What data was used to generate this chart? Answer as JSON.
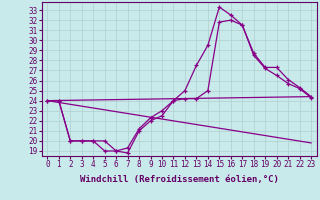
{
  "xlabel": "Windchill (Refroidissement éolien,°C)",
  "background_color": "#c8eaea",
  "line_color": "#880088",
  "xlim": [
    -0.5,
    23.5
  ],
  "ylim": [
    18.5,
    33.8
  ],
  "yticks": [
    19,
    20,
    21,
    22,
    23,
    24,
    25,
    26,
    27,
    28,
    29,
    30,
    31,
    32,
    33
  ],
  "xticks": [
    0,
    1,
    2,
    3,
    4,
    5,
    6,
    7,
    8,
    9,
    10,
    11,
    12,
    13,
    14,
    15,
    16,
    17,
    18,
    19,
    20,
    21,
    22,
    23
  ],
  "line1_x": [
    0,
    1,
    2,
    3,
    4,
    5,
    6,
    7,
    8,
    9,
    10,
    11,
    12,
    13,
    14,
    15,
    16,
    17,
    18,
    19,
    20,
    21,
    22,
    23
  ],
  "line1_y": [
    24,
    24,
    20,
    20,
    20,
    19,
    19,
    18.8,
    21,
    22,
    22.5,
    24,
    25,
    27.5,
    29.5,
    33.3,
    32.5,
    31.5,
    28.5,
    27.2,
    26.5,
    25.7,
    25.2,
    24.3
  ],
  "line2_x": [
    0,
    1,
    2,
    3,
    4,
    5,
    6,
    7,
    8,
    9,
    10,
    11,
    12,
    13,
    14,
    15,
    16,
    17,
    18,
    19,
    20,
    21,
    22,
    23
  ],
  "line2_y": [
    24,
    24,
    20,
    20,
    20,
    20,
    19,
    19.3,
    21.2,
    22.3,
    23,
    24,
    24.2,
    24.2,
    25,
    31.8,
    32.0,
    31.5,
    28.7,
    27.3,
    27.3,
    26.1,
    25.3,
    24.4
  ],
  "line3_x": [
    0,
    23
  ],
  "line3_y": [
    24.0,
    24.4
  ],
  "line4_x": [
    0,
    23
  ],
  "line4_y": [
    24.0,
    19.8
  ],
  "tick_fontsize": 5.5,
  "label_fontsize": 6.5
}
